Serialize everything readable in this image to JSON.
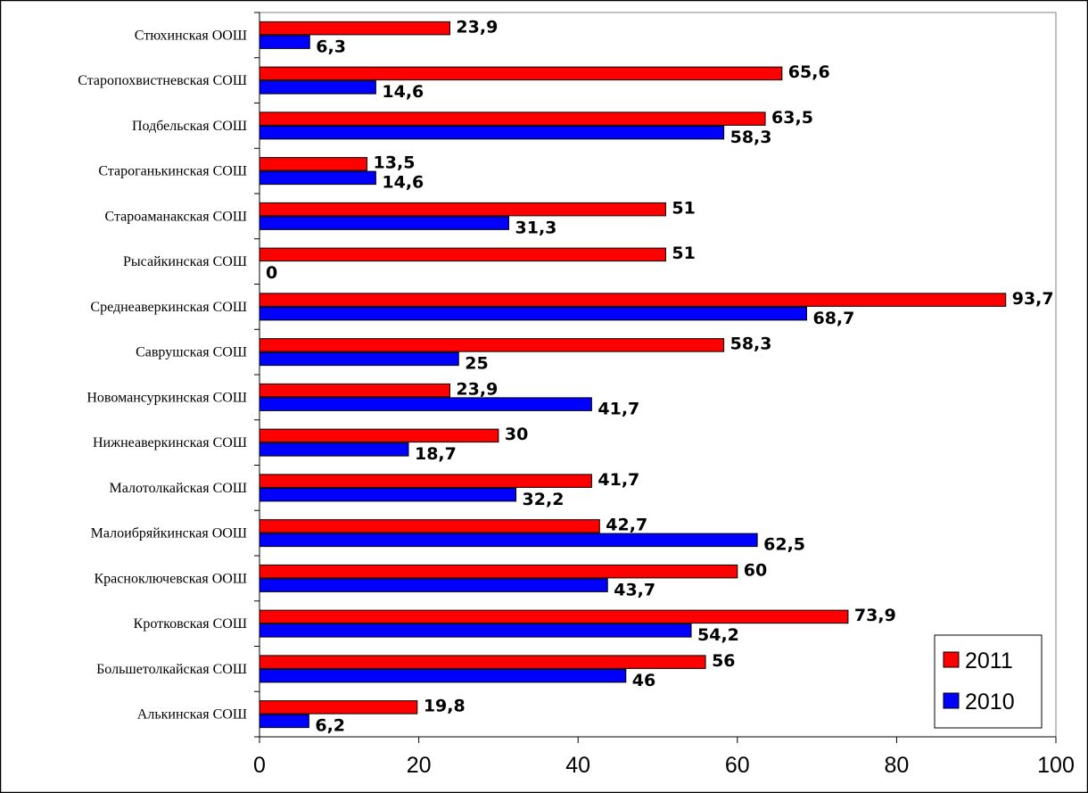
{
  "chart_data": {
    "type": "bar",
    "orientation": "horizontal",
    "categories": [
      "Стюхинская ООШ",
      "Старопохвистневская СОШ",
      "Подбельская СОШ",
      "Староганькинская СОШ",
      "Староаманакская СОШ",
      "Рысайкинская СОШ",
      "Среднеаверкинская СОШ",
      "Саврушская СОШ",
      "Новомансуркинская СОШ",
      "Нижнеаверкинская СОШ",
      "Малотолкайская СОШ",
      "Малоибряйкинская ООШ",
      "Красноключевская ООШ",
      "Кротковская СОШ",
      "Большетолкайская СОШ",
      "Алькинская СОШ"
    ],
    "series": [
      {
        "name": "2011",
        "color": "#ff0000",
        "values": [
          23.9,
          65.6,
          63.5,
          13.5,
          51,
          51,
          93.7,
          58.3,
          23.9,
          30,
          41.7,
          42.7,
          60,
          73.9,
          56,
          19.8
        ],
        "labels": [
          "23,9",
          "65,6",
          "63,5",
          "13,5",
          "51",
          "51",
          "93,7",
          "58,3",
          "23,9",
          "30",
          "41,7",
          "42,7",
          "60",
          "73,9",
          "56",
          "19,8"
        ]
      },
      {
        "name": "2010",
        "color": "#0000ff",
        "values": [
          6.3,
          14.6,
          58.3,
          14.6,
          31.3,
          0,
          68.7,
          25,
          41.7,
          18.7,
          32.2,
          62.5,
          43.7,
          54.2,
          46,
          6.2
        ],
        "labels": [
          "6,3",
          "14,6",
          "58,3",
          "14,6",
          "31,3",
          "0",
          "68,7",
          "25",
          "41,7",
          "18,7",
          "32,2",
          "62,5",
          "43,7",
          "54,2",
          "46",
          "6,2"
        ]
      }
    ],
    "xlim": [
      0,
      100
    ],
    "xticks": [
      0,
      20,
      40,
      60,
      80,
      100
    ],
    "grid": false,
    "legend": "bottom-right",
    "title": "",
    "xlabel": "",
    "ylabel": ""
  }
}
